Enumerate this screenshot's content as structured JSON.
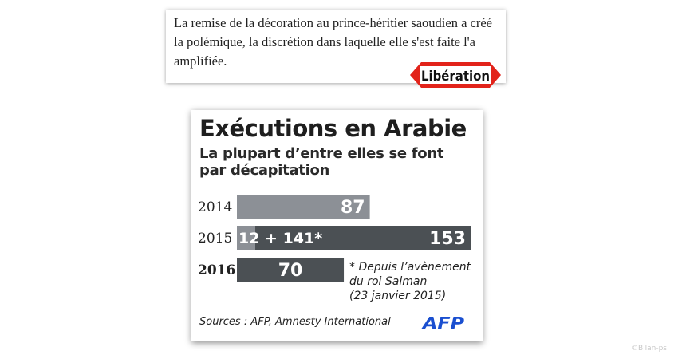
{
  "quote": {
    "text": "La remise de la décoration au prince-héritier saoudien a créé la polémique, la discrétion dans laquelle elle s'est faite l'a amplifiée.",
    "logo_text": "Libération"
  },
  "chart_data": {
    "type": "bar",
    "title": "Exécutions en Arabie",
    "subtitle": "La plupart d’entre elles se font par décapitation",
    "categories": [
      "2014",
      "2015",
      "2016"
    ],
    "values": [
      87,
      153,
      70
    ],
    "segments_2015": {
      "before": 12,
      "after": 141,
      "label": "12 + 141*"
    },
    "bar_labels": [
      "87",
      "153",
      "70"
    ],
    "footnote": "* Depuis l’avènement\ndu roi Salman\n(23 janvier 2015)",
    "sources": "Sources : AFP, Amnesty International",
    "xlim": [
      0,
      153
    ],
    "colors": {
      "2014": "#8c9096",
      "2015_before": "#8c9096",
      "2015_after": "#4b5054",
      "2016": "#4b5054"
    }
  },
  "afp_logo_text": "AFP",
  "watermark": "©Bilan-ps"
}
